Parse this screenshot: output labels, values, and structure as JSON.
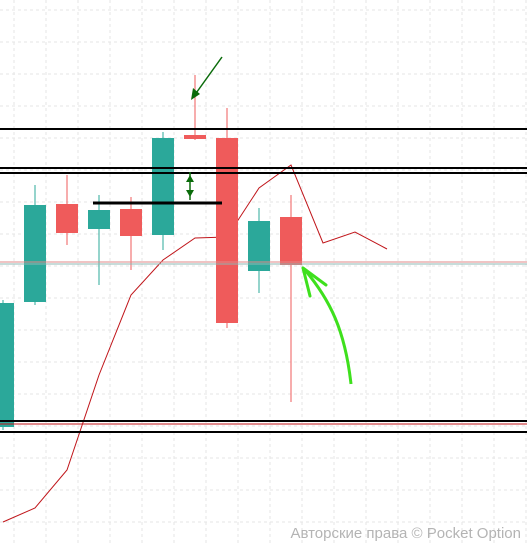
{
  "chart_data": {
    "type": "candlestick",
    "open": [
      118,
      243,
      341,
      316,
      336,
      310,
      410,
      407,
      274,
      328
    ],
    "high": [
      245,
      360,
      370,
      350,
      348,
      413,
      470,
      437,
      337,
      350
    ],
    "low": [
      115,
      240,
      300,
      260,
      275,
      295,
      405,
      217,
      252,
      143
    ],
    "close": [
      242,
      340,
      312,
      335,
      309,
      407,
      406,
      222,
      324,
      280
    ],
    "up_color": "#2ba89a",
    "down_color": "#ef5b5b",
    "line": {
      "color": "#c0151a",
      "values": [
        23,
        37,
        75,
        170,
        250,
        285,
        307,
        308,
        357,
        380,
        302,
        313,
        296
      ]
    },
    "ylim": [
      0,
      545
    ],
    "watermark": "Авторские права © Pocket Option"
  }
}
